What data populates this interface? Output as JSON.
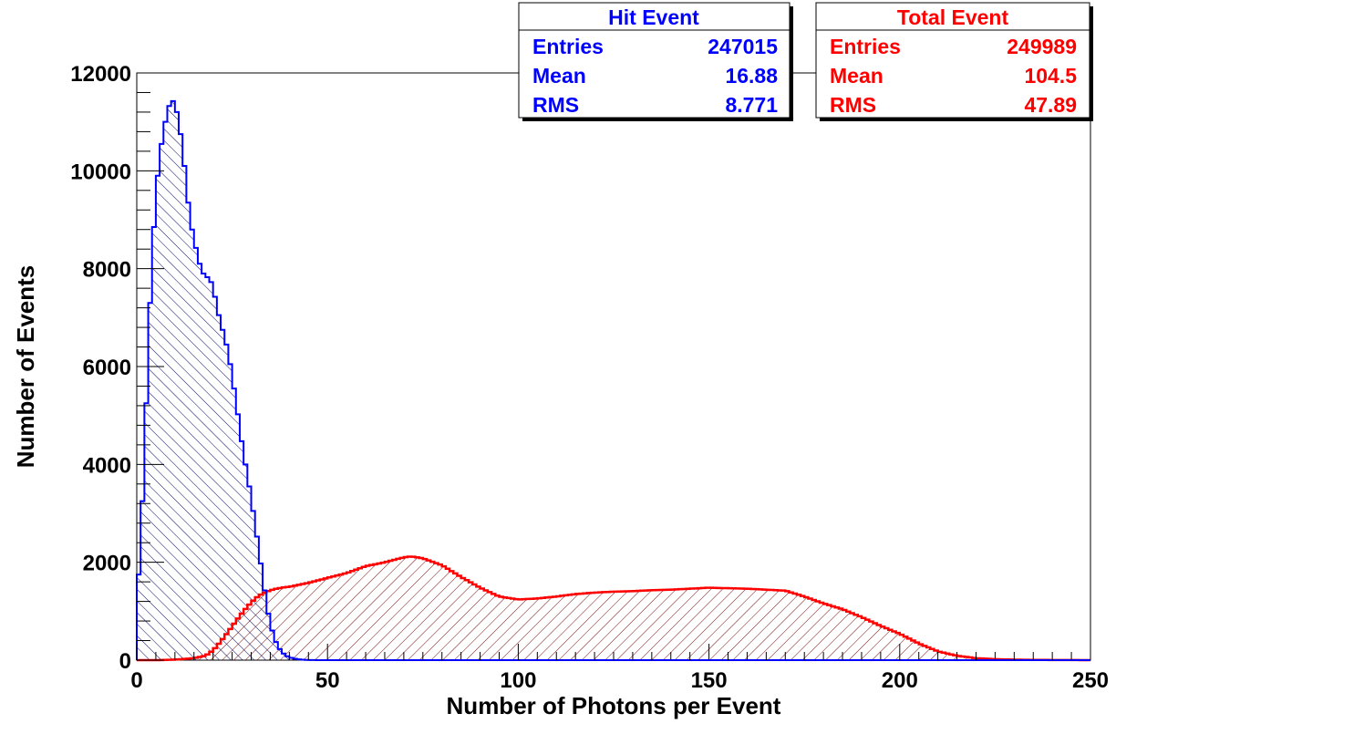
{
  "chart_data": {
    "type": "histogram",
    "xlabel": "Number of Photons per Event",
    "ylabel": "Number of Events",
    "xlim": [
      0,
      250
    ],
    "ylim": [
      0,
      12000
    ],
    "bin_width": 1,
    "x_ticks": [
      0,
      50,
      100,
      150,
      200,
      250
    ],
    "y_ticks": [
      0,
      2000,
      4000,
      6000,
      8000,
      10000,
      12000
    ],
    "x_tick_labels": [
      "0",
      "50",
      "100",
      "150",
      "200",
      "250"
    ],
    "y_tick_labels": [
      "0",
      "2000",
      "4000",
      "6000",
      "8000",
      "10000",
      "12000"
    ],
    "grid": false,
    "series": [
      {
        "name": "Hit Event",
        "color": "#0000ff",
        "hatch": "diagonal-forward",
        "x": [
          0,
          1,
          2,
          3,
          4,
          5,
          6,
          7,
          8,
          9,
          10,
          11,
          12,
          13,
          14,
          15,
          16,
          17,
          18,
          19,
          20,
          21,
          22,
          23,
          24,
          25,
          26,
          27,
          28,
          29,
          30,
          31,
          32,
          33,
          34,
          35,
          36,
          37,
          38,
          39,
          40,
          41,
          42,
          43,
          44,
          45,
          46,
          47,
          48,
          49,
          50
        ],
        "values": [
          1100,
          2400,
          4100,
          6400,
          8200,
          9500,
          10300,
          10800,
          11200,
          11450,
          11400,
          11000,
          10500,
          9700,
          9000,
          8600,
          8250,
          7950,
          7850,
          7800,
          7650,
          7200,
          6900,
          6600,
          6300,
          5800,
          5300,
          4750,
          4200,
          3800,
          3300,
          2800,
          2250,
          1700,
          1150,
          750,
          460,
          280,
          170,
          100,
          60,
          35,
          20,
          12,
          7,
          4,
          2,
          1,
          0,
          0,
          0
        ],
        "stats": {
          "title": "Hit Event",
          "entries": "247015",
          "mean": "16.88",
          "rms": "8.771"
        }
      },
      {
        "name": "Total Event",
        "color": "#ff0000",
        "hatch": "diagonal-backward",
        "x": [
          0,
          5,
          10,
          15,
          18,
          20,
          22,
          24,
          26,
          28,
          30,
          32,
          34,
          36,
          38,
          40,
          45,
          50,
          55,
          60,
          65,
          70,
          72,
          75,
          80,
          85,
          90,
          95,
          100,
          105,
          110,
          115,
          120,
          125,
          130,
          135,
          140,
          145,
          150,
          155,
          160,
          165,
          170,
          175,
          180,
          185,
          190,
          195,
          200,
          205,
          210,
          215,
          220,
          225,
          230,
          235,
          240,
          245,
          249
        ],
        "values": [
          0,
          0,
          10,
          40,
          90,
          200,
          380,
          580,
          800,
          1000,
          1180,
          1320,
          1400,
          1450,
          1480,
          1500,
          1580,
          1680,
          1780,
          1920,
          2000,
          2100,
          2120,
          2080,
          1940,
          1700,
          1480,
          1300,
          1240,
          1260,
          1300,
          1350,
          1380,
          1400,
          1410,
          1430,
          1440,
          1460,
          1480,
          1470,
          1460,
          1440,
          1420,
          1300,
          1160,
          1040,
          880,
          700,
          540,
          340,
          180,
          90,
          40,
          20,
          10,
          5,
          3,
          2,
          0
        ],
        "stats": {
          "title": "Total Event",
          "entries": "249989",
          "mean": "104.5",
          "rms": "47.89"
        }
      }
    ],
    "stats_labels": {
      "entries": "Entries",
      "mean": "Mean",
      "rms": "RMS"
    }
  }
}
